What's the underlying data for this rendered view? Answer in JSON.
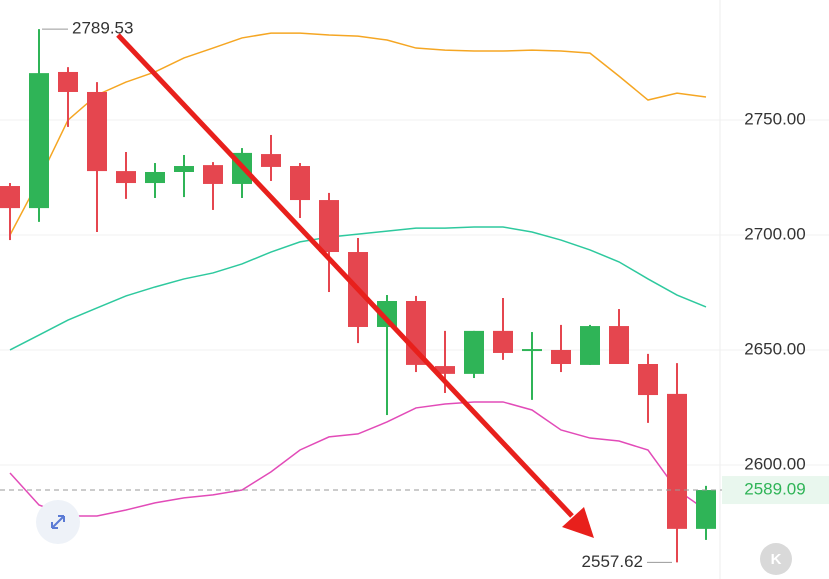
{
  "chart_data": {
    "type": "candlestick",
    "open": [
      2721.3,
      2711.7,
      2770.9,
      2762.2,
      2727.8,
      2722.6,
      2727.4,
      2730.4,
      2722.2,
      2735.2,
      2730.0,
      2715.2,
      2692.6,
      2660.0,
      2671.3,
      2643.0,
      2639.6,
      2658.3,
      2649.6,
      2650.0,
      2643.5,
      2660.4,
      2643.9,
      2630.9,
      2572.2
    ],
    "high": [
      2722.6,
      2789.53,
      2773.0,
      2766.5,
      2736.1,
      2731.3,
      2734.8,
      2731.7,
      2737.8,
      2743.5,
      2731.3,
      2718.3,
      2698.7,
      2673.9,
      2673.5,
      2658.3,
      2658.3,
      2672.6,
      2657.8,
      2660.9,
      2660.9,
      2667.8,
      2648.3,
      2644.3,
      2590.9
    ],
    "low": [
      2697.8,
      2705.7,
      2747.0,
      2701.3,
      2715.7,
      2716.1,
      2716.5,
      2710.9,
      2716.1,
      2723.5,
      2707.4,
      2675.2,
      2653.0,
      2621.7,
      2640.4,
      2631.3,
      2637.8,
      2645.7,
      2628.3,
      2640.4,
      2643.5,
      2643.9,
      2618.3,
      2557.62,
      2567.4
    ],
    "close": [
      2711.7,
      2770.4,
      2762.2,
      2727.8,
      2722.6,
      2727.4,
      2730.0,
      2722.2,
      2735.7,
      2729.6,
      2715.2,
      2692.6,
      2660.0,
      2671.3,
      2643.5,
      2639.6,
      2658.3,
      2648.7,
      2650.4,
      2643.9,
      2660.4,
      2643.9,
      2630.4,
      2572.2,
      2589.09
    ],
    "up_color": "#2fb457",
    "down_color": "#e5464f",
    "series": [
      {
        "color": "#f5a623",
        "values": [
          2700.0,
          2723.9,
          2750.0,
          2760.9,
          2766.5,
          2770.9,
          2777.0,
          2781.3,
          2785.7,
          2787.8,
          2787.8,
          2787.0,
          2786.5,
          2784.8,
          2781.3,
          2780.4,
          2780.0,
          2780.0,
          2780.4,
          2780.0,
          2779.1,
          2769.1,
          2758.7,
          2761.7,
          2760.0
        ]
      },
      {
        "color": "#2ec99e",
        "values": [
          2650.0,
          2656.5,
          2663.0,
          2668.3,
          2673.5,
          2677.4,
          2680.9,
          2683.5,
          2687.4,
          2692.6,
          2697.0,
          2699.1,
          2700.4,
          2701.7,
          2703.0,
          2703.0,
          2703.5,
          2703.5,
          2701.3,
          2697.8,
          2693.5,
          2688.3,
          2680.9,
          2673.9,
          2668.7
        ]
      },
      {
        "color": "#e24bb8",
        "values": [
          2596.5,
          2582.6,
          2577.8,
          2577.8,
          2580.4,
          2583.5,
          2585.7,
          2587.0,
          2589.1,
          2597.0,
          2606.5,
          2612.2,
          2613.5,
          2618.7,
          2624.8,
          2626.5,
          2627.4,
          2627.4,
          2623.9,
          2615.2,
          2611.7,
          2610.4,
          2606.5,
          2589.1,
          2580.4
        ]
      }
    ],
    "ylim": [
      2550.4,
      2802.2
    ],
    "yticks": [
      {
        "value": 2600,
        "label": "2600.00"
      },
      {
        "value": 2650,
        "label": "2650.00"
      },
      {
        "value": 2700,
        "label": "2700.00"
      },
      {
        "value": 2750,
        "label": "2750.00"
      }
    ],
    "grid": true,
    "max_label": 2789.53,
    "min_label": 2557.62,
    "last_price": 2589.09,
    "last_price_color": "#2fb457",
    "button_label": "K"
  }
}
